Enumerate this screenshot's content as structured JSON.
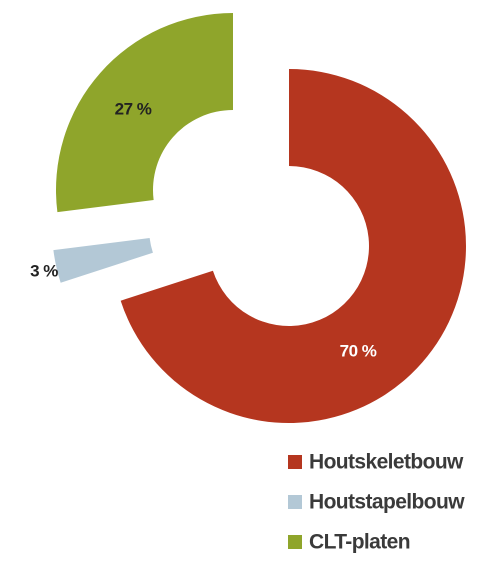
{
  "chart_data": {
    "type": "donut",
    "categories": [
      "Houtskeletbouw",
      "Houtstapelbouw",
      "CLT-platen"
    ],
    "values": [
      70,
      3,
      27
    ],
    "value_labels": [
      "70 %",
      "3 %",
      "27 %"
    ],
    "colors": [
      "#b5361f",
      "#b3c8d6",
      "#8fa52b"
    ],
    "legend": "bottom-right"
  }
}
